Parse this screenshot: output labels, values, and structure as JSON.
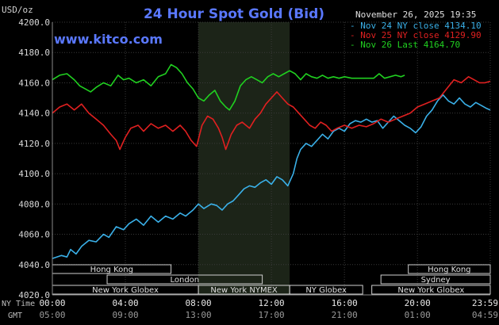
{
  "chart_data": {
    "type": "line",
    "title": "24 Hour Spot Gold (Bid)",
    "ylabel": "USD/oz",
    "timestamp": "November 26, 2025 19:35",
    "watermark": "www.kitco.com",
    "ylim": [
      4020,
      4200
    ],
    "y_ticks": [
      "4200.0",
      "4180.0",
      "4160.0",
      "4140.0",
      "4120.0",
      "4100.0",
      "4080.0",
      "4060.0",
      "4040.0",
      "4020.0"
    ],
    "x_label_ny": "NY Time",
    "x_label_gmt": "GMT",
    "x_ticks_ny": [
      "00:00",
      "04:00",
      "08:00",
      "12:00",
      "16:00",
      "20:00",
      "23:59"
    ],
    "x_ticks_gmt": [
      "05:00",
      "09:00",
      "13:00",
      "17:00",
      "21:00",
      "01:00",
      "04:59"
    ],
    "legend": [
      {
        "label": "Nov 24 NY close",
        "value": "4134.10",
        "color": "#3ab0e8"
      },
      {
        "label": "Nov 25 NY close",
        "value": "4129.90",
        "color": "#e02020"
      },
      {
        "label": "Nov 26 Last",
        "value": "4164.70",
        "color": "#20d020"
      }
    ],
    "sessions": [
      {
        "name": "Hong Kong",
        "start": 0,
        "end": 6.5,
        "row": 0
      },
      {
        "name": "Hong Kong",
        "start": 19.5,
        "end": 23.99,
        "row": 0
      },
      {
        "name": "London",
        "start": 3,
        "end": 11.5,
        "row": 1
      },
      {
        "name": "Sydney",
        "start": 18,
        "end": 23.99,
        "row": 1
      },
      {
        "name": "New York Globex",
        "start": 0,
        "end": 8,
        "row": 2
      },
      {
        "name": "New York NYMEX",
        "start": 8,
        "end": 13,
        "row": 2
      },
      {
        "name": "NY Globex",
        "start": 13,
        "end": 17,
        "row": 2
      },
      {
        "name": "New York Globex",
        "start": 17.5,
        "end": 23.99,
        "row": 2
      }
    ],
    "nymex_window": [
      8,
      13
    ],
    "series": [
      {
        "name": "Nov 24",
        "color": "#3ab0e8",
        "points": [
          [
            0,
            4044
          ],
          [
            0.5,
            4046
          ],
          [
            0.8,
            4045
          ],
          [
            1,
            4050
          ],
          [
            1.3,
            4047
          ],
          [
            1.6,
            4052
          ],
          [
            2,
            4056
          ],
          [
            2.4,
            4055
          ],
          [
            2.8,
            4060
          ],
          [
            3.1,
            4058
          ],
          [
            3.5,
            4065
          ],
          [
            3.9,
            4063
          ],
          [
            4.2,
            4067
          ],
          [
            4.6,
            4070
          ],
          [
            5,
            4066
          ],
          [
            5.4,
            4072
          ],
          [
            5.8,
            4068
          ],
          [
            6.2,
            4072
          ],
          [
            6.6,
            4070
          ],
          [
            7,
            4074
          ],
          [
            7.3,
            4072
          ],
          [
            7.7,
            4076
          ],
          [
            8,
            4080
          ],
          [
            8.3,
            4077
          ],
          [
            8.7,
            4080
          ],
          [
            9,
            4079
          ],
          [
            9.3,
            4076
          ],
          [
            9.6,
            4080
          ],
          [
            9.9,
            4082
          ],
          [
            10.2,
            4086
          ],
          [
            10.5,
            4090
          ],
          [
            10.8,
            4092
          ],
          [
            11.1,
            4091
          ],
          [
            11.4,
            4094
          ],
          [
            11.7,
            4096
          ],
          [
            12,
            4093
          ],
          [
            12.3,
            4098
          ],
          [
            12.6,
            4096
          ],
          [
            12.9,
            4092
          ],
          [
            13.2,
            4100
          ],
          [
            13.4,
            4110
          ],
          [
            13.6,
            4116
          ],
          [
            13.9,
            4120
          ],
          [
            14.2,
            4118
          ],
          [
            14.5,
            4122
          ],
          [
            14.8,
            4126
          ],
          [
            15.1,
            4123
          ],
          [
            15.4,
            4128
          ],
          [
            15.7,
            4130
          ],
          [
            16,
            4128
          ],
          [
            16.3,
            4133
          ],
          [
            16.6,
            4135
          ],
          [
            16.9,
            4134
          ],
          [
            17.2,
            4136
          ],
          [
            17.5,
            4134
          ],
          [
            17.8,
            4135
          ],
          [
            18.1,
            4130
          ],
          [
            18.4,
            4134
          ],
          [
            18.7,
            4138
          ],
          [
            19,
            4135
          ],
          [
            19.3,
            4132
          ],
          [
            19.6,
            4130
          ],
          [
            19.9,
            4127
          ],
          [
            20.2,
            4131
          ],
          [
            20.5,
            4138
          ],
          [
            20.8,
            4142
          ],
          [
            21.1,
            4148
          ],
          [
            21.4,
            4152
          ],
          [
            21.7,
            4148
          ],
          [
            22,
            4146
          ],
          [
            22.3,
            4150
          ],
          [
            22.6,
            4146
          ],
          [
            22.9,
            4144
          ],
          [
            23.2,
            4147
          ],
          [
            23.5,
            4145
          ],
          [
            23.8,
            4143
          ],
          [
            23.99,
            4142
          ]
        ]
      },
      {
        "name": "Nov 25",
        "color": "#e02020",
        "points": [
          [
            0,
            4140
          ],
          [
            0.4,
            4144
          ],
          [
            0.8,
            4146
          ],
          [
            1.2,
            4142
          ],
          [
            1.6,
            4146
          ],
          [
            2,
            4140
          ],
          [
            2.4,
            4136
          ],
          [
            2.8,
            4132
          ],
          [
            3.2,
            4126
          ],
          [
            3.5,
            4122
          ],
          [
            3.7,
            4116
          ],
          [
            4,
            4124
          ],
          [
            4.3,
            4130
          ],
          [
            4.7,
            4132
          ],
          [
            5,
            4128
          ],
          [
            5.4,
            4133
          ],
          [
            5.8,
            4130
          ],
          [
            6.2,
            4132
          ],
          [
            6.6,
            4128
          ],
          [
            7,
            4132
          ],
          [
            7.3,
            4128
          ],
          [
            7.6,
            4122
          ],
          [
            7.9,
            4118
          ],
          [
            8.2,
            4132
          ],
          [
            8.5,
            4138
          ],
          [
            8.8,
            4136
          ],
          [
            9.1,
            4130
          ],
          [
            9.3,
            4124
          ],
          [
            9.5,
            4116
          ],
          [
            9.8,
            4126
          ],
          [
            10.1,
            4132
          ],
          [
            10.4,
            4134
          ],
          [
            10.8,
            4130
          ],
          [
            11.1,
            4136
          ],
          [
            11.4,
            4140
          ],
          [
            11.7,
            4146
          ],
          [
            12,
            4150
          ],
          [
            12.3,
            4154
          ],
          [
            12.6,
            4150
          ],
          [
            12.9,
            4146
          ],
          [
            13.2,
            4144
          ],
          [
            13.5,
            4140
          ],
          [
            13.8,
            4136
          ],
          [
            14.1,
            4132
          ],
          [
            14.4,
            4130
          ],
          [
            14.7,
            4134
          ],
          [
            15,
            4132
          ],
          [
            15.3,
            4128
          ],
          [
            15.6,
            4130
          ],
          [
            16,
            4132
          ],
          [
            16.4,
            4130
          ],
          [
            16.8,
            4132
          ],
          [
            17.2,
            4131
          ],
          [
            17.6,
            4133
          ],
          [
            18,
            4136
          ],
          [
            18.4,
            4134
          ],
          [
            18.8,
            4136
          ],
          [
            19.2,
            4138
          ],
          [
            19.6,
            4140
          ],
          [
            20,
            4144
          ],
          [
            20.4,
            4146
          ],
          [
            20.8,
            4148
          ],
          [
            21.2,
            4150
          ],
          [
            21.6,
            4156
          ],
          [
            22,
            4162
          ],
          [
            22.4,
            4160
          ],
          [
            22.8,
            4164
          ],
          [
            23.1,
            4162
          ],
          [
            23.4,
            4160
          ],
          [
            23.7,
            4160
          ],
          [
            23.99,
            4161
          ]
        ]
      },
      {
        "name": "Nov 26",
        "color": "#20d020",
        "points": [
          [
            0,
            4162
          ],
          [
            0.4,
            4165
          ],
          [
            0.8,
            4166
          ],
          [
            1.2,
            4162
          ],
          [
            1.5,
            4158
          ],
          [
            1.8,
            4156
          ],
          [
            2.1,
            4154
          ],
          [
            2.4,
            4157
          ],
          [
            2.8,
            4160
          ],
          [
            3.2,
            4158
          ],
          [
            3.6,
            4165
          ],
          [
            3.9,
            4162
          ],
          [
            4.2,
            4163
          ],
          [
            4.6,
            4160
          ],
          [
            5,
            4162
          ],
          [
            5.4,
            4158
          ],
          [
            5.8,
            4164
          ],
          [
            6.2,
            4166
          ],
          [
            6.5,
            4172
          ],
          [
            6.8,
            4170
          ],
          [
            7.1,
            4166
          ],
          [
            7.4,
            4160
          ],
          [
            7.7,
            4156
          ],
          [
            8,
            4150
          ],
          [
            8.3,
            4148
          ],
          [
            8.6,
            4152
          ],
          [
            8.9,
            4155
          ],
          [
            9.2,
            4148
          ],
          [
            9.5,
            4144
          ],
          [
            9.7,
            4142
          ],
          [
            10,
            4148
          ],
          [
            10.3,
            4158
          ],
          [
            10.6,
            4162
          ],
          [
            10.9,
            4164
          ],
          [
            11.2,
            4162
          ],
          [
            11.5,
            4160
          ],
          [
            11.8,
            4164
          ],
          [
            12.1,
            4166
          ],
          [
            12.4,
            4164
          ],
          [
            12.7,
            4166
          ],
          [
            13,
            4168
          ],
          [
            13.3,
            4166
          ],
          [
            13.6,
            4162
          ],
          [
            13.9,
            4166
          ],
          [
            14.2,
            4164
          ],
          [
            14.5,
            4163
          ],
          [
            14.8,
            4165
          ],
          [
            15.1,
            4163
          ],
          [
            15.4,
            4164
          ],
          [
            15.7,
            4163
          ],
          [
            16,
            4164
          ],
          [
            16.4,
            4163
          ],
          [
            16.8,
            4163
          ],
          [
            17.2,
            4163
          ],
          [
            17.6,
            4163
          ],
          [
            17.9,
            4166
          ],
          [
            18.2,
            4163
          ],
          [
            18.5,
            4164
          ],
          [
            18.8,
            4165
          ],
          [
            19.1,
            4164
          ],
          [
            19.3,
            4165
          ]
        ]
      }
    ]
  }
}
